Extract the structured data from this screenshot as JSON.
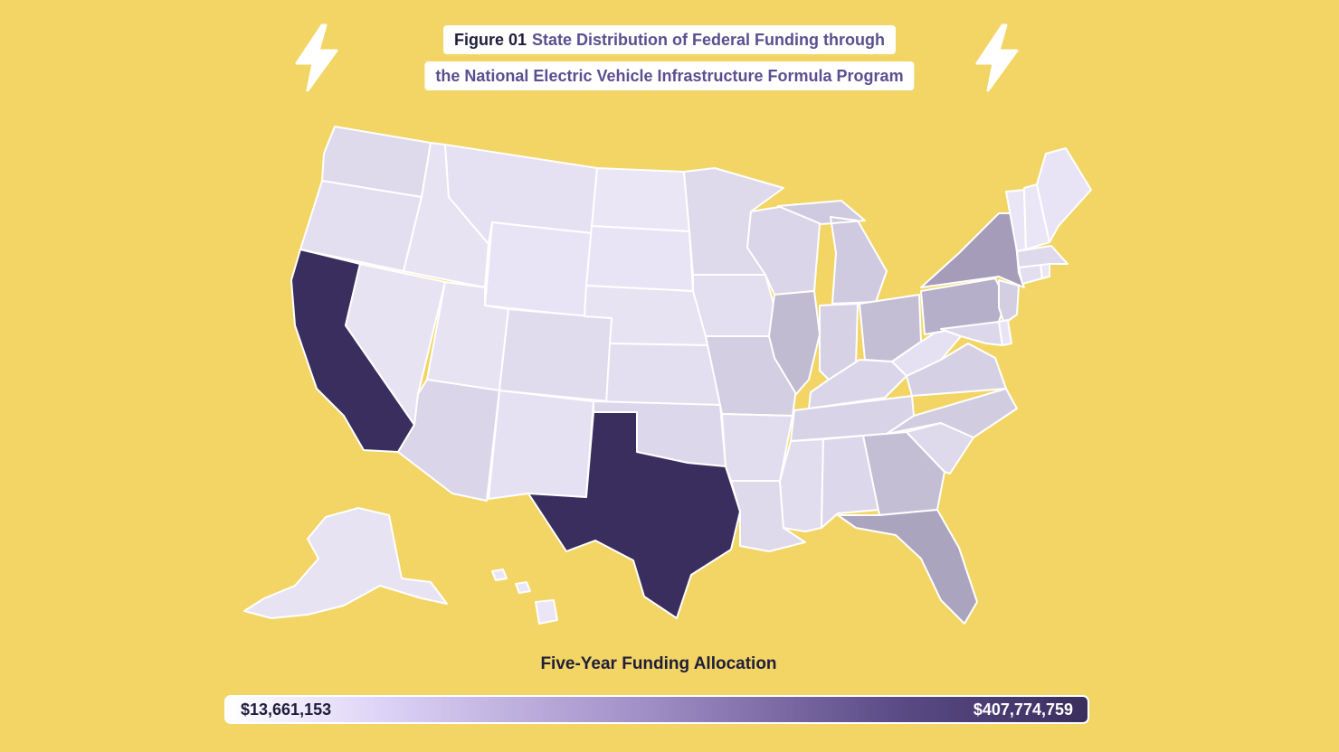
{
  "figure": {
    "label": "Figure 01",
    "title_line1": "State Distribution of Federal Funding through",
    "title_line2": "the National Electric Vehicle Infrastructure Formula Program"
  },
  "icons": [
    "lightning-bolt-icon",
    "lightning-bolt-icon"
  ],
  "legend": {
    "title": "Five-Year Funding Allocation",
    "min_label": "$13,661,153",
    "max_label": "$407,774,759",
    "min_value": 13661153,
    "max_value": 407774759,
    "color_low": "#ffffff",
    "color_high": "#3a2e5e"
  },
  "map": {
    "type": "choropleth",
    "region": "United States",
    "shading_level_scale": "0 = lowest allocation, 1 = highest allocation",
    "states": [
      {
        "id": "WA",
        "level": 0.1
      },
      {
        "id": "OR",
        "level": 0.07
      },
      {
        "id": "CA",
        "level": 1.0
      },
      {
        "id": "NV",
        "level": 0.05
      },
      {
        "id": "ID",
        "level": 0.05
      },
      {
        "id": "MT",
        "level": 0.06
      },
      {
        "id": "WY",
        "level": 0.04
      },
      {
        "id": "UT",
        "level": 0.05
      },
      {
        "id": "AZ",
        "level": 0.12
      },
      {
        "id": "CO",
        "level": 0.09
      },
      {
        "id": "NM",
        "level": 0.06
      },
      {
        "id": "ND",
        "level": 0.03
      },
      {
        "id": "SD",
        "level": 0.04
      },
      {
        "id": "NE",
        "level": 0.05
      },
      {
        "id": "KS",
        "level": 0.07
      },
      {
        "id": "OK",
        "level": 0.11
      },
      {
        "id": "TX",
        "level": 1.0
      },
      {
        "id": "MN",
        "level": 0.1
      },
      {
        "id": "IA",
        "level": 0.07
      },
      {
        "id": "MO",
        "level": 0.16
      },
      {
        "id": "AR",
        "level": 0.08
      },
      {
        "id": "LA",
        "level": 0.1
      },
      {
        "id": "WI",
        "level": 0.12
      },
      {
        "id": "IL",
        "level": 0.26
      },
      {
        "id": "MI",
        "level": 0.18
      },
      {
        "id": "IN",
        "level": 0.14
      },
      {
        "id": "OH",
        "level": 0.24
      },
      {
        "id": "KY",
        "level": 0.12
      },
      {
        "id": "TN",
        "level": 0.13
      },
      {
        "id": "MS",
        "level": 0.08
      },
      {
        "id": "AL",
        "level": 0.11
      },
      {
        "id": "GA",
        "level": 0.24
      },
      {
        "id": "FL",
        "level": 0.38
      },
      {
        "id": "SC",
        "level": 0.1
      },
      {
        "id": "NC",
        "level": 0.17
      },
      {
        "id": "VA",
        "level": 0.15
      },
      {
        "id": "WV",
        "level": 0.06
      },
      {
        "id": "PA",
        "level": 0.32
      },
      {
        "id": "NY",
        "level": 0.42
      },
      {
        "id": "NJ",
        "level": 0.16
      },
      {
        "id": "MD",
        "level": 0.11
      },
      {
        "id": "DE",
        "level": 0.04
      },
      {
        "id": "CT",
        "level": 0.07
      },
      {
        "id": "RI",
        "level": 0.03
      },
      {
        "id": "MA",
        "level": 0.1
      },
      {
        "id": "VT",
        "level": 0.03
      },
      {
        "id": "NH",
        "level": 0.03
      },
      {
        "id": "ME",
        "level": 0.04
      },
      {
        "id": "AK",
        "level": 0.05
      },
      {
        "id": "HI",
        "level": 0.03
      }
    ]
  }
}
